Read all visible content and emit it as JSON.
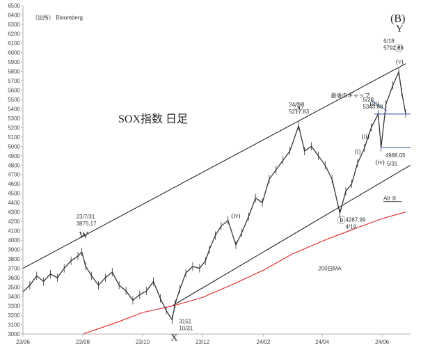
{
  "chart_data": {
    "type": "line",
    "title": "SOX指数 日足",
    "source": "（出所） Bloomberg",
    "ylim": [
      3000,
      6500
    ],
    "yticks": [
      3000,
      3100,
      3200,
      3300,
      3400,
      3500,
      3600,
      3700,
      3800,
      3900,
      4000,
      4100,
      4200,
      4300,
      4400,
      4500,
      4600,
      4700,
      4800,
      4900,
      5000,
      5100,
      5200,
      5300,
      5400,
      5500,
      5600,
      5700,
      5800,
      5900,
      6000,
      6100,
      6200,
      6300,
      6400,
      6500
    ],
    "xticks": [
      {
        "x": "2023-06-01",
        "label": "23/06"
      },
      {
        "x": "2023-08-01",
        "label": "23/08"
      },
      {
        "x": "2023-10-01",
        "label": "23/10"
      },
      {
        "x": "2023-12-01",
        "label": "23/12"
      },
      {
        "x": "2024-02-01",
        "label": "24/02"
      },
      {
        "x": "2024-04-01",
        "label": "24/04"
      },
      {
        "x": "2024-06-01",
        "label": "24/06"
      }
    ],
    "xlim": [
      "2023-06-01",
      "2024-06-30"
    ],
    "series": [
      {
        "name": "SOX",
        "color": "#333333",
        "points": [
          [
            "2023-06-01",
            3450
          ],
          [
            "2023-06-08",
            3520
          ],
          [
            "2023-06-15",
            3620
          ],
          [
            "2023-06-22",
            3560
          ],
          [
            "2023-06-29",
            3640
          ],
          [
            "2023-07-06",
            3600
          ],
          [
            "2023-07-13",
            3700
          ],
          [
            "2023-07-20",
            3780
          ],
          [
            "2023-07-27",
            3830
          ],
          [
            "2023-07-31",
            3875
          ],
          [
            "2023-08-04",
            3720
          ],
          [
            "2023-08-10",
            3620
          ],
          [
            "2023-08-17",
            3520
          ],
          [
            "2023-08-24",
            3600
          ],
          [
            "2023-08-31",
            3660
          ],
          [
            "2023-09-07",
            3520
          ],
          [
            "2023-09-14",
            3460
          ],
          [
            "2023-09-21",
            3360
          ],
          [
            "2023-09-28",
            3420
          ],
          [
            "2023-10-05",
            3460
          ],
          [
            "2023-10-12",
            3560
          ],
          [
            "2023-10-19",
            3380
          ],
          [
            "2023-10-25",
            3250
          ],
          [
            "2023-10-31",
            3151
          ],
          [
            "2023-11-03",
            3320
          ],
          [
            "2023-11-08",
            3480
          ],
          [
            "2023-11-14",
            3650
          ],
          [
            "2023-11-21",
            3720
          ],
          [
            "2023-11-28",
            3700
          ],
          [
            "2023-12-04",
            3780
          ],
          [
            "2023-12-08",
            3900
          ],
          [
            "2023-12-14",
            4050
          ],
          [
            "2023-12-20",
            4150
          ],
          [
            "2023-12-27",
            4210
          ],
          [
            "2024-01-04",
            3950
          ],
          [
            "2024-01-10",
            4080
          ],
          [
            "2024-01-17",
            4250
          ],
          [
            "2024-01-24",
            4450
          ],
          [
            "2024-01-31",
            4400
          ],
          [
            "2024-02-07",
            4650
          ],
          [
            "2024-02-14",
            4750
          ],
          [
            "2024-02-21",
            4850
          ],
          [
            "2024-02-28",
            4950
          ],
          [
            "2024-03-08",
            5218
          ],
          [
            "2024-03-14",
            4950
          ],
          [
            "2024-03-21",
            5000
          ],
          [
            "2024-03-28",
            4900
          ],
          [
            "2024-04-04",
            4800
          ],
          [
            "2024-04-11",
            4650
          ],
          [
            "2024-04-19",
            4288
          ],
          [
            "2024-04-25",
            4520
          ],
          [
            "2024-05-01",
            4600
          ],
          [
            "2024-05-07",
            4820
          ],
          [
            "2024-05-14",
            4980
          ],
          [
            "2024-05-21",
            5200
          ],
          [
            "2024-05-28",
            5344
          ],
          [
            "2024-05-31",
            4988
          ],
          [
            "2024-06-05",
            5450
          ],
          [
            "2024-06-12",
            5650
          ],
          [
            "2024-06-18",
            5793
          ],
          [
            "2024-06-21",
            5580
          ],
          [
            "2024-06-25",
            5350
          ]
        ]
      },
      {
        "name": "200日MA",
        "color": "#e02020",
        "points": [
          [
            "2023-08-01",
            3000
          ],
          [
            "2023-09-01",
            3110
          ],
          [
            "2023-10-01",
            3230
          ],
          [
            "2023-11-01",
            3300
          ],
          [
            "2023-12-01",
            3390
          ],
          [
            "2024-01-01",
            3530
          ],
          [
            "2024-02-01",
            3680
          ],
          [
            "2024-03-01",
            3850
          ],
          [
            "2024-04-01",
            3990
          ],
          [
            "2024-05-01",
            4110
          ],
          [
            "2024-06-01",
            4230
          ],
          [
            "2024-06-25",
            4300
          ]
        ]
      }
    ],
    "channels": [
      {
        "name": "upper",
        "from": [
          "2023-06-01",
          3700
        ],
        "to": [
          "2024-06-25",
          5880
        ]
      },
      {
        "name": "lower",
        "from": [
          "2023-10-31",
          3300
        ],
        "to": [
          "2024-06-30",
          4800
        ]
      }
    ],
    "hlines": [
      {
        "y": 5344,
        "from": "2024-05-24",
        "to": "2024-06-30",
        "color": "#1f4f9a"
      },
      {
        "y": 4988,
        "from": "2024-05-31",
        "to": "2024-06-30",
        "color": "#1f4f9a"
      }
    ],
    "annotations": [
      {
        "text": "23/7/31",
        "x": "2023-07-31",
        "y": 3875
      },
      {
        "text": "3875.17",
        "x": "2023-07-31",
        "y": 3875
      },
      {
        "text": "24/3/8",
        "x": "2024-03-08",
        "y": 5218
      },
      {
        "text": "5217.83",
        "x": "2024-03-08",
        "y": 5218
      },
      {
        "text": "3151",
        "x": "2023-10-31",
        "y": 3151
      },
      {
        "text": "10/31",
        "x": "2023-10-31",
        "y": 3151
      },
      {
        "text": "4287.99",
        "x": "2024-04-19",
        "y": 4288
      },
      {
        "text": "4/19",
        "x": "2024-04-19",
        "y": 4288
      },
      {
        "text": "5/28",
        "x": "2024-05-28",
        "y": 5344
      },
      {
        "text": "5343.68",
        "x": "2024-05-28",
        "y": 5344
      },
      {
        "text": "6/18",
        "x": "2024-06-18",
        "y": 5793
      },
      {
        "text": "5792.86",
        "x": "2024-06-18",
        "y": 5793
      },
      {
        "text": "4988.05",
        "x": "2024-05-31",
        "y": 4988
      },
      {
        "text": "5/31",
        "x": "2024-05-31",
        "y": 4988
      },
      {
        "text": "最後のギャップ",
        "x": "2024-05-28",
        "y": 5344
      },
      {
        "text": "Alt ⑤",
        "x": "2024-06-01",
        "y": 4500
      },
      {
        "text": "200日MA",
        "x": "2024-05-01",
        "y": 4110
      }
    ],
    "wave_labels": [
      {
        "text": "W",
        "x": "2023-07-31",
        "y": 3875
      },
      {
        "text": "X",
        "x": "2023-10-31",
        "y": 3151
      },
      {
        "text": "Y",
        "x": "2024-06-18",
        "y": 5793
      },
      {
        "text": "(B)",
        "x": "2024-06-18",
        "y": 5793
      },
      {
        "text": "ⓐ",
        "x": "2024-03-08",
        "y": 5218
      },
      {
        "text": "ⓑ",
        "x": "2024-04-19",
        "y": 4288
      },
      {
        "text": "ⓒ",
        "x": "2024-06-18",
        "y": 5793
      },
      {
        "text": "(iv)",
        "x": "2024-01-05",
        "y": 4400
      },
      {
        "text": "(i)",
        "x": "2024-05-07",
        "y": 4820
      },
      {
        "text": "(ii)",
        "x": "2024-05-14",
        "y": 4980
      },
      {
        "text": "(iii)",
        "x": "2024-05-28",
        "y": 5344
      },
      {
        "text": "(iv)",
        "x": "2024-05-31",
        "y": 4988
      },
      {
        "text": "(v)",
        "x": "2024-06-18",
        "y": 5793
      }
    ]
  }
}
